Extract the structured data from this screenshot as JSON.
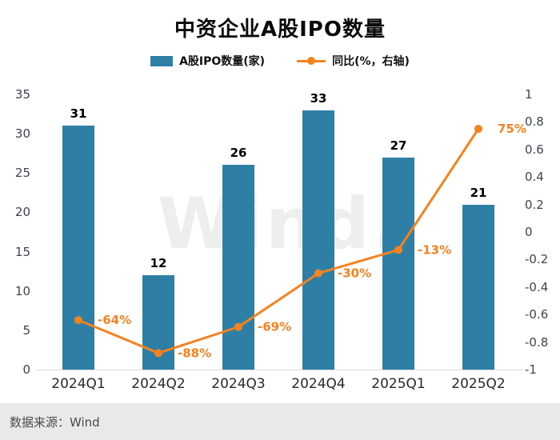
{
  "watermark": "Wind.",
  "source": "数据来源：Wind",
  "colors": {
    "bar": "#2e7fa6",
    "line": "#f5821f"
  },
  "chart_data": {
    "type": "bar+line",
    "title": "中资企业A股IPO数量",
    "legend": [
      "A股IPO数量(家)",
      "同比(%，右轴)"
    ],
    "categories": [
      "2024Q1",
      "2024Q2",
      "2024Q3",
      "2024Q4",
      "2025Q1",
      "2025Q2"
    ],
    "series": [
      {
        "name": "A股IPO数量(家)",
        "type": "bar",
        "axis": "left",
        "values": [
          31,
          12,
          26,
          33,
          27,
          21
        ],
        "color": "#2e7fa6"
      },
      {
        "name": "同比(%，右轴)",
        "type": "line",
        "axis": "right",
        "values": [
          -0.64,
          -0.88,
          -0.69,
          -0.3,
          -0.13,
          0.75
        ],
        "labels": [
          "-64%",
          "-88%",
          "-69%",
          "-30%",
          "-13%",
          "75%"
        ],
        "color": "#f5821f"
      }
    ],
    "left_axis": {
      "min": 0,
      "max": 35,
      "ticks": [
        "35",
        "30",
        "25",
        "20",
        "15",
        "10",
        "5",
        "0"
      ]
    },
    "right_axis": {
      "min": -1,
      "max": 1,
      "ticks": [
        "1",
        "0.8",
        "0.6",
        "0.4",
        "0.2",
        "0",
        "-0.2",
        "-0.4",
        "-0.6",
        "-0.8",
        "-1"
      ]
    },
    "grid": false,
    "legend_position": "top"
  }
}
